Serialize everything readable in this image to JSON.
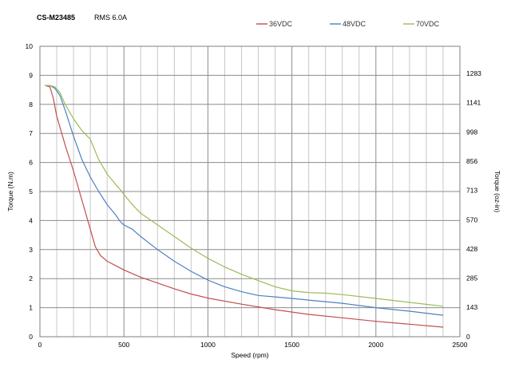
{
  "header": {
    "model": "CS-M23485",
    "rating": "RMS 6.0A"
  },
  "chart_data": {
    "type": "line",
    "xlabel": "Speed (rpm)",
    "ylabel": "Torque (N.m)",
    "y2label": "Torque (oz-in)",
    "xlim": [
      0,
      2500
    ],
    "ylim": [
      0,
      10
    ],
    "x_ticks": [
      0,
      500,
      1000,
      1500,
      2000,
      2500
    ],
    "y_ticks": [
      0,
      1,
      2,
      3,
      4,
      5,
      6,
      7,
      8,
      9,
      10
    ],
    "y2_ticks": [
      0,
      143,
      285,
      428,
      570,
      713,
      856,
      998,
      1141,
      1283
    ],
    "grid": true,
    "legend_position": "top",
    "series": [
      {
        "name": "36VDC",
        "color": "#c0504d",
        "x": [
          30,
          60,
          80,
          100,
          150,
          200,
          250,
          300,
          330,
          360,
          400,
          450,
          500,
          600,
          700,
          800,
          900,
          1000,
          1200,
          1400,
          1600,
          1800,
          2000,
          2200,
          2400
        ],
        "y": [
          8.65,
          8.6,
          8.2,
          7.6,
          6.6,
          5.7,
          4.7,
          3.7,
          3.1,
          2.8,
          2.6,
          2.45,
          2.3,
          2.05,
          1.85,
          1.65,
          1.47,
          1.33,
          1.12,
          0.93,
          0.77,
          0.65,
          0.53,
          0.43,
          0.33
        ]
      },
      {
        "name": "48VDC",
        "color": "#4f81bd",
        "x": [
          30,
          60,
          90,
          120,
          150,
          200,
          250,
          300,
          350,
          400,
          450,
          480,
          500,
          550,
          600,
          700,
          800,
          900,
          1000,
          1100,
          1200,
          1300,
          1400,
          1500,
          1600,
          1800,
          2000,
          2200,
          2400
        ],
        "y": [
          8.65,
          8.65,
          8.55,
          8.3,
          7.8,
          6.9,
          6.1,
          5.5,
          5.0,
          4.55,
          4.2,
          3.95,
          3.85,
          3.7,
          3.45,
          3.0,
          2.6,
          2.25,
          1.95,
          1.72,
          1.55,
          1.42,
          1.37,
          1.32,
          1.26,
          1.15,
          1.0,
          0.88,
          0.74
        ]
      },
      {
        "name": "70VDC",
        "color": "#9bbb59",
        "x": [
          30,
          60,
          90,
          120,
          150,
          200,
          250,
          300,
          350,
          400,
          450,
          480,
          500,
          550,
          600,
          700,
          800,
          900,
          1000,
          1100,
          1200,
          1300,
          1400,
          1500,
          1600,
          1700,
          1800,
          2000,
          2200,
          2400
        ],
        "y": [
          8.65,
          8.65,
          8.6,
          8.4,
          8.0,
          7.5,
          7.1,
          6.8,
          6.1,
          5.6,
          5.25,
          5.05,
          4.9,
          4.55,
          4.25,
          3.85,
          3.45,
          3.05,
          2.7,
          2.4,
          2.15,
          1.93,
          1.72,
          1.58,
          1.52,
          1.5,
          1.45,
          1.32,
          1.18,
          1.05
        ]
      }
    ]
  }
}
